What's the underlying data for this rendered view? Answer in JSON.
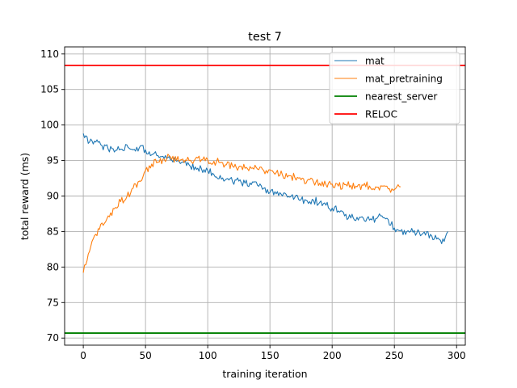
{
  "chart_data": {
    "type": "line",
    "title": "test 7",
    "xlabel": "training iteration",
    "ylabel": "total reward (ms)",
    "xlim": [
      -15,
      307
    ],
    "ylim": [
      69,
      111
    ],
    "xticks": [
      0,
      50,
      100,
      150,
      200,
      250,
      300
    ],
    "yticks": [
      70,
      75,
      80,
      85,
      90,
      95,
      100,
      105,
      110
    ],
    "grid": true,
    "legend_position": "top-right",
    "series": [
      {
        "name": "mat",
        "color": "#1f77b4",
        "x": [
          0,
          5,
          10,
          15,
          20,
          25,
          30,
          35,
          40,
          45,
          50,
          55,
          60,
          65,
          70,
          75,
          80,
          85,
          90,
          95,
          100,
          105,
          110,
          115,
          120,
          125,
          130,
          135,
          140,
          145,
          150,
          155,
          160,
          165,
          170,
          175,
          180,
          185,
          190,
          195,
          200,
          205,
          210,
          215,
          220,
          225,
          230,
          235,
          240,
          245,
          250,
          255,
          260,
          265,
          270,
          275,
          280,
          285,
          290,
          293
        ],
        "values": [
          98.8,
          97.6,
          97.6,
          97.1,
          96.6,
          96.2,
          96.6,
          97.2,
          96.5,
          96.8,
          96.5,
          95.8,
          95.7,
          95.3,
          95.1,
          94.9,
          94.8,
          94.4,
          94.1,
          93.8,
          93.6,
          93.0,
          92.9,
          92.4,
          92.0,
          92.1,
          91.8,
          91.6,
          91.5,
          91.1,
          90.5,
          90.3,
          90.0,
          89.9,
          89.8,
          89.5,
          89.3,
          89.4,
          89.1,
          88.7,
          88.3,
          87.9,
          87.2,
          86.9,
          87.0,
          86.9,
          86.6,
          86.8,
          87.2,
          86.7,
          85.5,
          85.1,
          85.0,
          84.9,
          84.9,
          84.5,
          84.4,
          84.1,
          83.6,
          85.0
        ]
      },
      {
        "name": "mat_pretraining",
        "color": "#ff7f0e",
        "x": [
          0,
          5,
          10,
          15,
          20,
          25,
          30,
          35,
          40,
          45,
          50,
          55,
          60,
          65,
          70,
          75,
          80,
          85,
          90,
          95,
          100,
          105,
          110,
          115,
          120,
          125,
          130,
          135,
          140,
          145,
          150,
          155,
          160,
          165,
          170,
          175,
          180,
          185,
          190,
          195,
          200,
          205,
          210,
          215,
          220,
          225,
          230,
          235,
          240,
          245,
          250,
          255
        ],
        "values": [
          79.2,
          82.2,
          84.6,
          86.2,
          87.2,
          88.2,
          89.2,
          89.9,
          91.1,
          92.1,
          93.6,
          94.5,
          94.8,
          95.2,
          95.5,
          95.0,
          95.2,
          95.0,
          95.2,
          95.1,
          95.1,
          94.9,
          94.7,
          94.4,
          94.2,
          94.1,
          93.9,
          93.9,
          93.8,
          93.6,
          93.7,
          93.3,
          93.0,
          92.9,
          92.6,
          92.3,
          92.2,
          92.0,
          91.8,
          91.6,
          91.7,
          91.4,
          91.6,
          91.5,
          91.3,
          91.5,
          91.4,
          91.3,
          91.4,
          91.0,
          90.9,
          91.3
        ]
      },
      {
        "name": "nearest_server",
        "color": "#008000",
        "constant": 70.7
      },
      {
        "name": "RELOC",
        "color": "#ff0000",
        "constant": 108.4
      }
    ]
  }
}
